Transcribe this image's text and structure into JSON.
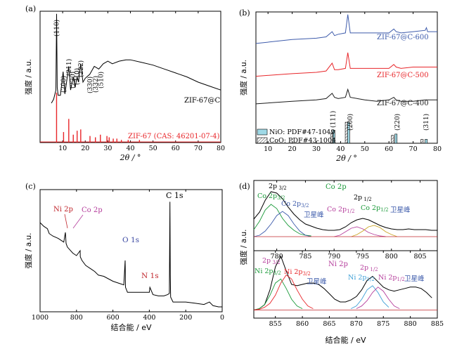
{
  "chart_data": [
    {
      "id": "a",
      "type": "line",
      "panel_label": "(a)",
      "xlabel": "2θ / °",
      "ylabel": "强度 / a.u.",
      "xlim": [
        0,
        80
      ],
      "xticks": [
        10,
        20,
        30,
        40,
        50,
        60,
        70,
        80
      ],
      "series": [
        {
          "name": "ZIF-67@C",
          "color": "#000000",
          "x": [
            5,
            6,
            7,
            7.3,
            7.6,
            8,
            9,
            10.2,
            11,
            12.7,
            13.5,
            14.7,
            15.5,
            16.4,
            17,
            18,
            19,
            20,
            22,
            24,
            26,
            28,
            30,
            32,
            35,
            38,
            40,
            45,
            50,
            55,
            60,
            65,
            70,
            75,
            80
          ],
          "y": [
            0.3,
            0.33,
            0.4,
            0.98,
            0.42,
            0.36,
            0.36,
            0.54,
            0.37,
            0.58,
            0.4,
            0.5,
            0.42,
            0.5,
            0.46,
            0.6,
            0.46,
            0.49,
            0.52,
            0.58,
            0.56,
            0.6,
            0.62,
            0.6,
            0.62,
            0.63,
            0.63,
            0.61,
            0.59,
            0.56,
            0.53,
            0.5,
            0.46,
            0.43,
            0.4
          ]
        },
        {
          "name": "ZIF-67 (CAS: 46201-07-4)",
          "color": "#e8262a",
          "type": "bar",
          "x": [
            7.3,
            10.4,
            12.7,
            14.7,
            16.4,
            18.0,
            22.1,
            24.5,
            26.7,
            29.6,
            30.6,
            32.4,
            34,
            36,
            39,
            44
          ],
          "y": [
            0.38,
            0.08,
            0.18,
            0.06,
            0.09,
            0.1,
            0.05,
            0.04,
            0.06,
            0.05,
            0.04,
            0.03,
            0.03,
            0.02,
            0.02,
            0.02
          ]
        }
      ],
      "annotations": [
        "(110)",
        "(200)",
        "(211)",
        "(220)",
        "(310)",
        "(222)",
        "(330)",
        "(332)",
        "(510)"
      ]
    },
    {
      "id": "b",
      "type": "line",
      "panel_label": "(b)",
      "xlabel": "2θ / °",
      "ylabel": "强度 / a.u.",
      "xlim": [
        5,
        80
      ],
      "xticks": [
        10,
        20,
        30,
        40,
        50,
        60,
        70,
        80
      ],
      "series": [
        {
          "name": "ZIF-67@C-600",
          "color": "#3d5bab",
          "x": [
            5,
            20,
            30,
            34,
            36.5,
            37.5,
            39,
            42,
            43,
            44,
            50,
            55,
            60,
            62,
            63,
            65,
            70,
            75,
            75.5,
            76,
            80
          ],
          "y": [
            0.76,
            0.79,
            0.8,
            0.81,
            0.85,
            0.82,
            0.83,
            0.84,
            0.98,
            0.84,
            0.84,
            0.84,
            0.84,
            0.87,
            0.85,
            0.84,
            0.85,
            0.86,
            0.88,
            0.85,
            0.85
          ]
        },
        {
          "name": "ZIF-67@C-500",
          "color": "#e8262a",
          "x": [
            5,
            20,
            30,
            34,
            36.5,
            37.5,
            39,
            42,
            43,
            44,
            50,
            55,
            60,
            62,
            63,
            65,
            70,
            75,
            80
          ],
          "y": [
            0.51,
            0.53,
            0.54,
            0.55,
            0.61,
            0.56,
            0.56,
            0.57,
            0.69,
            0.57,
            0.57,
            0.57,
            0.57,
            0.6,
            0.58,
            0.57,
            0.58,
            0.58,
            0.58
          ]
        },
        {
          "name": "ZIF-67@C-400",
          "color": "#1a1a1a",
          "x": [
            5,
            20,
            30,
            34,
            36.5,
            37.5,
            39,
            42,
            43,
            44,
            50,
            55,
            60,
            62,
            63,
            65,
            70,
            75,
            80
          ],
          "y": [
            0.3,
            0.32,
            0.33,
            0.34,
            0.38,
            0.35,
            0.34,
            0.35,
            0.41,
            0.35,
            0.33,
            0.32,
            0.33,
            0.35,
            0.33,
            0.32,
            0.32,
            0.33,
            0.33
          ]
        },
        {
          "name": "NiO: PDF#47-1049",
          "color": "#9fd9e6",
          "type": "bar",
          "x": [
            37.2,
            43.3,
            62.9,
            75.4
          ],
          "y": [
            0.1,
            0.16,
            0.07,
            0.03
          ]
        },
        {
          "name": "CoO: PDF#43-1004",
          "color": "#ffffff",
          "type": "bar",
          "pattern": "hatch",
          "x": [
            36.5,
            42.4,
            61.5,
            73.7
          ],
          "y": [
            0.08,
            0.16,
            0.06,
            0.03
          ]
        }
      ],
      "annotations": [
        "(111)",
        "(200)",
        "(220)",
        "(311)"
      ]
    },
    {
      "id": "c",
      "type": "line",
      "panel_label": "(c)",
      "xlabel": "结合能 / eV",
      "ylabel": "强度 / a.u.",
      "xlim": [
        1000,
        0
      ],
      "xticks": [
        1000,
        800,
        600,
        400,
        200,
        0
      ],
      "series": [
        {
          "name": "survey",
          "color": "#000000",
          "x": [
            1000,
            980,
            960,
            950,
            930,
            900,
            880,
            870,
            861,
            857,
            850,
            820,
            800,
            780,
            779,
            770,
            750,
            720,
            700,
            680,
            650,
            600,
            560,
            540,
            533,
            531,
            520,
            500,
            470,
            420,
            400,
            397,
            380,
            350,
            320,
            300,
            290,
            287,
            285,
            283,
            270,
            200,
            150,
            100,
            70,
            50,
            20,
            0
          ],
          "y": [
            0.73,
            0.7,
            0.68,
            0.64,
            0.62,
            0.6,
            0.58,
            0.57,
            0.65,
            0.56,
            0.53,
            0.48,
            0.46,
            0.5,
            0.45,
            0.42,
            0.38,
            0.35,
            0.33,
            0.3,
            0.29,
            0.25,
            0.23,
            0.22,
            0.42,
            0.2,
            0.16,
            0.16,
            0.16,
            0.16,
            0.16,
            0.2,
            0.14,
            0.13,
            0.13,
            0.14,
            0.15,
            0.9,
            0.3,
            0.12,
            0.08,
            0.08,
            0.07,
            0.06,
            0.08,
            0.05,
            0.04,
            0.04
          ]
        }
      ],
      "annotations": [
        {
          "text": "Ni 2p",
          "color": "#c0272d"
        },
        {
          "text": "Co 2p",
          "color": "#b53e9c"
        },
        {
          "text": "O 1s",
          "color": "#3d4aa3"
        },
        {
          "text": "N 1s",
          "color": "#c0272d"
        },
        {
          "text": "C 1s",
          "color": "#000000"
        }
      ]
    },
    {
      "id": "d",
      "type": "line",
      "panel_label": "(d)",
      "xlabel": "结合能 / eV",
      "ylabel": "强度 / a.u.",
      "subplots": [
        {
          "title": "Co 2p",
          "title_color": "#1b9a3a",
          "xlim": [
            776,
            808
          ],
          "xticks": [
            780,
            785,
            790,
            795,
            800,
            805
          ],
          "series": [
            {
              "name": "data",
              "color": "#000000",
              "x": [
                776,
                777,
                778,
                779,
                780,
                781,
                782,
                783,
                784,
                785,
                786,
                787,
                788,
                789,
                790,
                791,
                792,
                793,
                794,
                795,
                796,
                797,
                798,
                799,
                800,
                801,
                802,
                803,
                804,
                805,
                806,
                807,
                808
              ],
              "y": [
                0.45,
                0.55,
                0.72,
                0.84,
                0.82,
                0.74,
                0.62,
                0.52,
                0.44,
                0.38,
                0.35,
                0.32,
                0.3,
                0.29,
                0.29,
                0.3,
                0.34,
                0.4,
                0.44,
                0.46,
                0.44,
                0.4,
                0.36,
                0.33,
                0.31,
                0.3,
                0.3,
                0.31,
                0.3,
                0.3,
                0.3,
                0.29,
                0.29
              ]
            },
            {
              "name": "Co 2p3/2",
              "color": "#1b9a3a",
              "x": [
                776,
                777,
                778,
                779,
                780,
                781,
                782,
                783,
                784,
                785,
                786
              ],
              "y": [
                0.3,
                0.42,
                0.58,
                0.66,
                0.6,
                0.46,
                0.36,
                0.29,
                0.24,
                0.22,
                0.21
              ]
            },
            {
              "name": "Co 2p3/2",
              "color": "#3d5bab",
              "x": [
                776,
                777,
                778,
                779,
                780,
                781,
                782,
                783,
                784,
                785,
                786
              ],
              "y": [
                0.2,
                0.22,
                0.28,
                0.38,
                0.5,
                0.56,
                0.5,
                0.38,
                0.28,
                0.22,
                0.2
              ]
            },
            {
              "name": "Co 2p1/2",
              "color": "#b53e9c",
              "x": [
                790,
                791,
                792,
                793,
                794,
                795,
                796,
                797,
                798,
                799
              ],
              "y": [
                0.2,
                0.22,
                0.27,
                0.32,
                0.34,
                0.31,
                0.26,
                0.23,
                0.21,
                0.2
              ]
            },
            {
              "name": "Co 2p1/2",
              "color": "#c9a321",
              "x": [
                793,
                794,
                795,
                796,
                797,
                798,
                799,
                800,
                801
              ],
              "y": [
                0.2,
                0.23,
                0.28,
                0.34,
                0.36,
                0.33,
                0.27,
                0.23,
                0.2
              ]
            }
          ]
        },
        {
          "title": "Ni 2p",
          "title_color": "#b53e9c",
          "xlim": [
            851,
            885
          ],
          "xticks": [
            855,
            860,
            865,
            870,
            875,
            880,
            885
          ],
          "series": [
            {
              "name": "data",
              "color": "#000000",
              "x": [
                851,
                852,
                853,
                854,
                855,
                856,
                857,
                858,
                859,
                860,
                861,
                862,
                863,
                864,
                865,
                866,
                867,
                868,
                869,
                870,
                871,
                872,
                873,
                874,
                875,
                876,
                877,
                878,
                879,
                880,
                881,
                882,
                883,
                884
              ],
              "y": [
                0.12,
                0.14,
                0.2,
                0.42,
                0.76,
                0.92,
                0.7,
                0.5,
                0.48,
                0.5,
                0.52,
                0.52,
                0.5,
                0.44,
                0.36,
                0.28,
                0.24,
                0.24,
                0.27,
                0.32,
                0.42,
                0.56,
                0.62,
                0.54,
                0.46,
                0.42,
                0.4,
                0.42,
                0.44,
                0.46,
                0.46,
                0.44,
                0.38,
                0.3
              ]
            },
            {
              "name": "Ni 2p3/2",
              "color": "#1b9a3a",
              "x": [
                851,
                852,
                853,
                854,
                855,
                856,
                857,
                858,
                859,
                860
              ],
              "y": [
                0.12,
                0.14,
                0.2,
                0.34,
                0.52,
                0.58,
                0.44,
                0.28,
                0.18,
                0.14
              ]
            },
            {
              "name": "Ni 2p3/2",
              "color": "#e8262a",
              "x": [
                851,
                852,
                853,
                854,
                855,
                856,
                857,
                858,
                859,
                860,
                861,
                862
              ],
              "y": [
                0.12,
                0.13,
                0.16,
                0.22,
                0.34,
                0.52,
                0.64,
                0.58,
                0.42,
                0.28,
                0.18,
                0.14
              ]
            },
            {
              "name": "Ni 2p1/2",
              "color": "#3d9fd6",
              "x": [
                869,
                870,
                871,
                872,
                873,
                874,
                875,
                876
              ],
              "y": [
                0.14,
                0.18,
                0.28,
                0.42,
                0.48,
                0.38,
                0.24,
                0.16
              ]
            },
            {
              "name": "Ni 2p1/2",
              "color": "#b53e9c",
              "x": [
                870,
                871,
                872,
                873,
                874,
                875,
                876,
                877,
                878
              ],
              "y": [
                0.14,
                0.18,
                0.26,
                0.38,
                0.46,
                0.4,
                0.28,
                0.18,
                0.14
              ]
            }
          ]
        }
      ]
    }
  ],
  "labels": {
    "a_sample": "ZIF-67@C",
    "a_ref": "ZIF-67 (CAS: 46201-07-4)",
    "a_peaks": [
      "(110)",
      "(200)",
      "(211)",
      "(220)",
      "(310)",
      "(222)",
      "(330)",
      "(332)",
      "(510)"
    ],
    "b_s1": "ZIF-67@C-600",
    "b_s2": "ZIF-67@C-500",
    "b_s3": "ZIF-67@C-400",
    "b_leg1": "NiO: PDF#47-1049",
    "b_leg2": "CoO: PDF#43-1004",
    "b_peaks": [
      "(111)",
      "(200)",
      "(220)",
      "(311)"
    ],
    "c_ni": "Ni 2p",
    "c_co": "Co 2p",
    "c_o": "O 1s",
    "c_n": "N 1s",
    "c_c": "C 1s",
    "d_co_title": "Co 2p",
    "d_ni_title": "Ni 2p",
    "d_sat": "卫星峰"
  }
}
